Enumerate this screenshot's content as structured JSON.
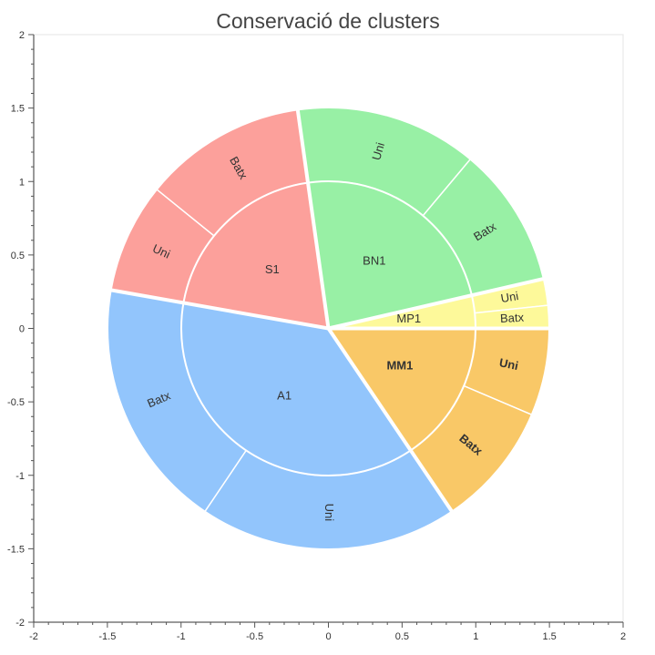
{
  "chart_data": {
    "type": "sunburst",
    "title": "Conservació de clusters",
    "xlim": [
      -2,
      2
    ],
    "ylim": [
      -2,
      2
    ],
    "x_ticks": [
      "-2",
      "-1.5",
      "-1",
      "-0.5",
      "0",
      "0.5",
      "1",
      "1.5",
      "2"
    ],
    "y_ticks": [
      "2",
      "1.5",
      "1",
      "0.5",
      "0",
      "-0.5",
      "-1",
      "-1.5",
      "-2"
    ],
    "grid": false,
    "inner_radius": 1.0,
    "outer_radius": 1.5,
    "clusters": [
      {
        "name": "MM1",
        "color": "#f9c867",
        "label_color": "#1f4e66",
        "label_bold": true,
        "start_deg": 0,
        "end_deg": 56,
        "children": [
          {
            "name": "Uni",
            "start_deg": 0,
            "end_deg": 23
          },
          {
            "name": "Batx",
            "start_deg": 23,
            "end_deg": 56
          }
        ]
      },
      {
        "name": "A1",
        "color": "#92c5fc",
        "label_color": "#333333",
        "label_bold": false,
        "start_deg": 56,
        "end_deg": 190,
        "children": [
          {
            "name": "Uni",
            "start_deg": 56,
            "end_deg": 124
          },
          {
            "name": "Batx",
            "start_deg": 124,
            "end_deg": 190
          }
        ]
      },
      {
        "name": "S1",
        "color": "#fca09b",
        "label_color": "#333333",
        "label_bold": false,
        "start_deg": 190,
        "end_deg": 262,
        "children": [
          {
            "name": "Uni",
            "start_deg": 190,
            "end_deg": 219
          },
          {
            "name": "Batx",
            "start_deg": 219,
            "end_deg": 262
          }
        ]
      },
      {
        "name": "BN1",
        "color": "#98f0a5",
        "label_color": "#333333",
        "label_bold": false,
        "start_deg": 262,
        "end_deg": 347,
        "children": [
          {
            "name": "Uni",
            "start_deg": 262,
            "end_deg": 310
          },
          {
            "name": "Batx",
            "start_deg": 310,
            "end_deg": 347
          }
        ]
      },
      {
        "name": "MP1",
        "color": "#fdf99a",
        "label_color": "#333333",
        "label_bold": false,
        "start_deg": 347,
        "end_deg": 360,
        "children": [
          {
            "name": "Uni",
            "start_deg": 347,
            "end_deg": 354
          },
          {
            "name": "Batx",
            "start_deg": 354,
            "end_deg": 360
          }
        ]
      }
    ]
  }
}
